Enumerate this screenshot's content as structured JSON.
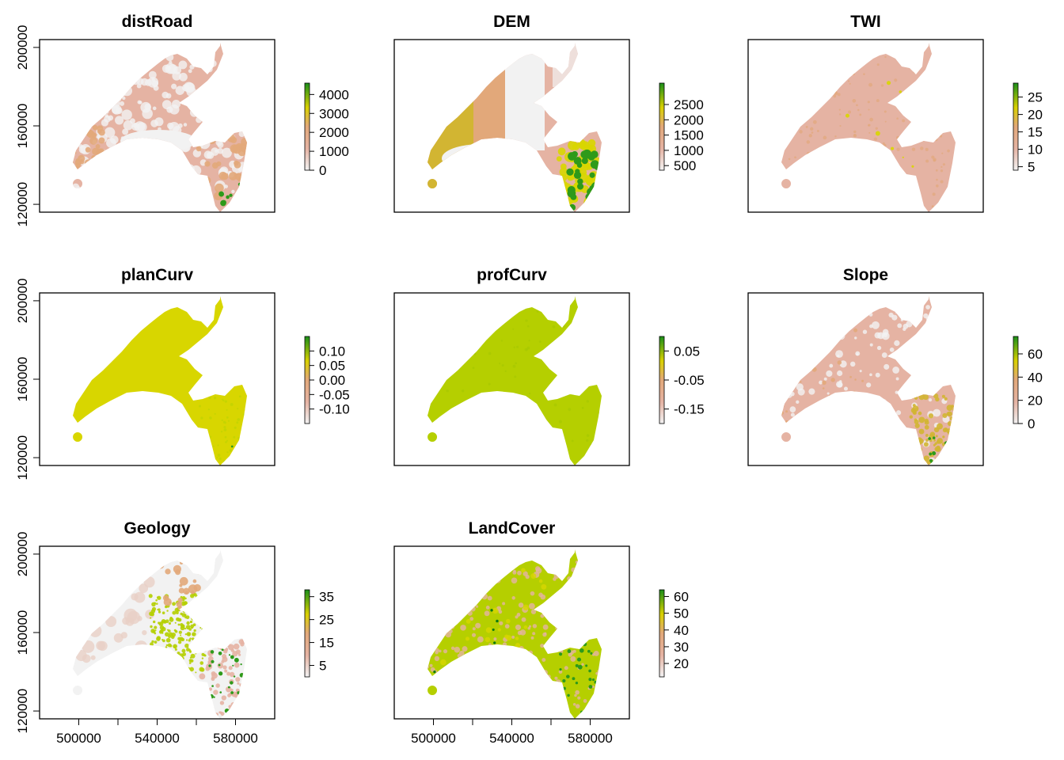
{
  "chart_data": [
    {
      "type": "heatmap",
      "title": "distRoad",
      "legend_ticks": [
        "4000",
        "3000",
        "2000",
        "1000",
        "0"
      ],
      "legend_values": [
        4000,
        3000,
        2000,
        1000,
        0
      ],
      "zlim": [
        0,
        4600
      ],
      "yticks": [
        "120000",
        "160000",
        "200000"
      ],
      "y_values": [
        120000,
        160000,
        200000
      ],
      "xticks": [],
      "ylim": [
        116000,
        204000
      ],
      "xlim": [
        480000,
        600000
      ],
      "fill_profile": "distance"
    },
    {
      "type": "heatmap",
      "title": "DEM",
      "legend_ticks": [
        "2500",
        "2000",
        "1500",
        "1000",
        "500"
      ],
      "legend_values": [
        2500,
        2000,
        1500,
        1000,
        500
      ],
      "zlim": [
        350,
        3200
      ],
      "yticks": [],
      "y_values": [],
      "xticks": [],
      "fill_profile": "elevation"
    },
    {
      "type": "heatmap",
      "title": "TWI",
      "legend_ticks": [
        "25",
        "20",
        "15",
        "10",
        "5"
      ],
      "legend_values": [
        25,
        20,
        15,
        10,
        5
      ],
      "zlim": [
        4,
        29
      ],
      "yticks": [],
      "y_values": [],
      "xticks": [],
      "fill_profile": "uniform-pink"
    },
    {
      "type": "heatmap",
      "title": "planCurv",
      "legend_ticks": [
        "0.10",
        "0.05",
        "0.00",
        "-0.05",
        "-0.10"
      ],
      "legend_values": [
        0.1,
        0.05,
        0.0,
        -0.05,
        -0.1
      ],
      "zlim": [
        -0.15,
        0.15
      ],
      "yticks": [
        "120000",
        "160000",
        "200000"
      ],
      "y_values": [
        120000,
        160000,
        200000
      ],
      "xticks": [],
      "fill_profile": "uniform-yellow"
    },
    {
      "type": "heatmap",
      "title": "profCurv",
      "legend_ticks": [
        "0.05",
        "-0.05",
        "-0.15"
      ],
      "legend_values": [
        0.05,
        -0.05,
        -0.15
      ],
      "zlim": [
        -0.2,
        0.1
      ],
      "yticks": [],
      "y_values": [],
      "xticks": [],
      "fill_profile": "uniform-yellowgreen"
    },
    {
      "type": "heatmap",
      "title": "Slope",
      "legend_ticks": [
        "60",
        "40",
        "20",
        "0"
      ],
      "legend_values": [
        60,
        40,
        20,
        0
      ],
      "zlim": [
        0,
        75
      ],
      "yticks": [],
      "y_values": [],
      "xticks": [],
      "fill_profile": "slope"
    },
    {
      "type": "heatmap",
      "title": "Geology",
      "legend_ticks": [
        "35",
        "25",
        "15",
        "5"
      ],
      "legend_values": [
        35,
        25,
        15,
        5
      ],
      "zlim": [
        0,
        38
      ],
      "yticks": [
        "120000",
        "160000",
        "200000"
      ],
      "y_values": [
        120000,
        160000,
        200000
      ],
      "xticks": [
        "500000",
        "540000",
        "580000"
      ],
      "x_values": [
        500000,
        540000,
        580000
      ],
      "fill_profile": "geology"
    },
    {
      "type": "heatmap",
      "title": "LandCover",
      "legend_ticks": [
        "60",
        "50",
        "40",
        "30",
        "20"
      ],
      "legend_values": [
        60,
        50,
        40,
        30,
        20
      ],
      "zlim": [
        12,
        64
      ],
      "yticks": [],
      "y_values": [],
      "xticks": [
        "500000",
        "540000",
        "580000"
      ],
      "x_values": [
        500000,
        540000,
        580000
      ],
      "fill_profile": "landcover"
    }
  ],
  "colors": {
    "low": "#f2f2f2",
    "pink": "#e5b3a3",
    "tan": "#e2a87a",
    "olive": "#d2b532",
    "yellow": "#d8d600",
    "yellowgreen": "#b5cf00",
    "green": "#2e9a1a",
    "darkgreen": "#0c7a10",
    "frame": "#000000"
  }
}
